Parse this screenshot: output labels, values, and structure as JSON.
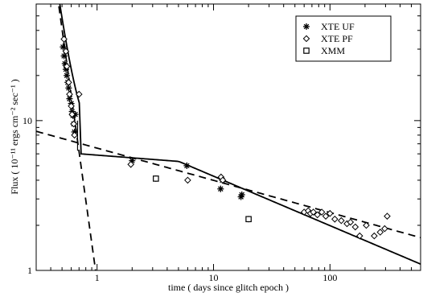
{
  "chart_data": {
    "type": "scatter",
    "title": "",
    "xlabel": "time ( days since glitch epoch )",
    "ylabel": "Flux ( 10⁻¹¹ ergs cm⁻² sec⁻¹ )",
    "xscale": "log",
    "yscale": "log",
    "xlim": [
      0.3,
      600
    ],
    "ylim": [
      1,
      60
    ],
    "x_ticks": [
      1,
      10,
      100
    ],
    "x_tick_labels": [
      "1",
      "10",
      "100"
    ],
    "y_ticks": [
      1,
      10
    ],
    "y_tick_labels": [
      "1",
      "10"
    ],
    "grid": false,
    "legend_position": "top-right",
    "series": [
      {
        "name": "XTE UF",
        "marker": "asterisk",
        "x": [
          0.51,
          0.52,
          0.53,
          0.54,
          0.55,
          0.56,
          0.57,
          0.58,
          0.6,
          0.61,
          0.62,
          0.63,
          0.64,
          0.65,
          2.0,
          5.9,
          11.5,
          11.9,
          17.2,
          17.5
        ],
        "y": [
          31.0,
          27.0,
          24.0,
          22.0,
          20.0,
          18.0,
          16.5,
          14.0,
          13.0,
          11.5,
          10.8,
          9.5,
          8.4,
          11.0,
          5.4,
          5.0,
          3.5,
          4.0,
          3.1,
          3.2
        ]
      },
      {
        "name": "XTE PF",
        "marker": "diamond",
        "x": [
          0.52,
          0.54,
          0.55,
          0.57,
          0.58,
          0.6,
          0.61,
          0.63,
          0.64,
          0.7,
          1.95,
          6.0,
          11.6,
          12.0,
          60,
          65,
          68,
          72,
          78,
          85,
          92,
          100,
          110,
          125,
          140,
          150,
          165,
          180,
          205,
          240,
          270,
          295,
          310
        ],
        "y": [
          35.0,
          29.0,
          23.0,
          18.0,
          15.0,
          12.5,
          11.0,
          9.5,
          8.0,
          15.0,
          5.1,
          4.0,
          4.2,
          4.0,
          2.45,
          2.5,
          2.4,
          2.45,
          2.35,
          2.45,
          2.3,
          2.4,
          2.2,
          2.15,
          2.05,
          2.1,
          1.95,
          1.7,
          2.0,
          1.7,
          1.8,
          1.9,
          2.3
        ]
      },
      {
        "name": "XMM",
        "marker": "square",
        "x": [
          3.2,
          20.0
        ],
        "y": [
          4.1,
          2.2
        ]
      }
    ]
  }
}
